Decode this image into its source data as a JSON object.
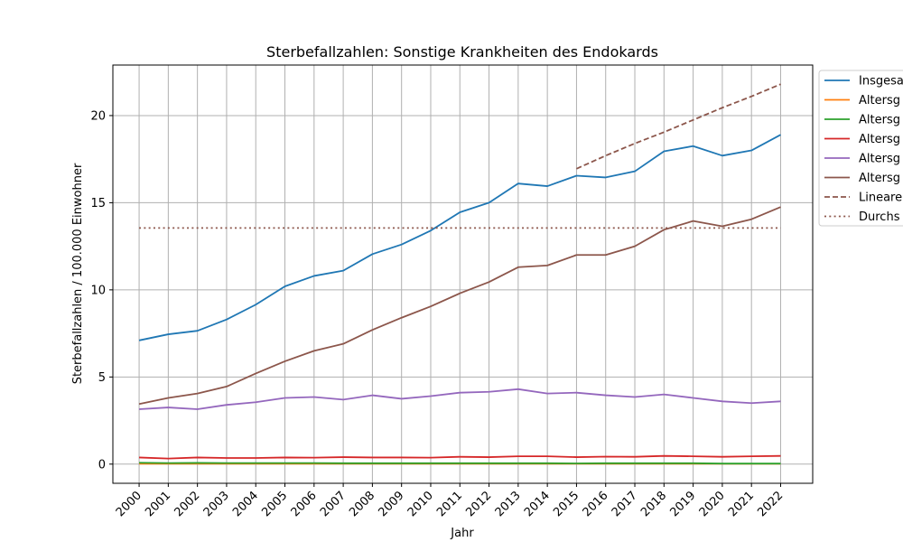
{
  "chart_data": {
    "type": "line",
    "title": "Sterbefallzahlen: Sonstige Krankheiten des Endokards",
    "xlabel": "Jahr",
    "ylabel": "Sterbefallzahlen / 100.000 Einwohner",
    "x": [
      "2000",
      "2001",
      "2002",
      "2003",
      "2004",
      "2005",
      "2006",
      "2007",
      "2008",
      "2009",
      "2010",
      "2011",
      "2012",
      "2013",
      "2014",
      "2015",
      "2016",
      "2017",
      "2018",
      "2019",
      "2020",
      "2021",
      "2022"
    ],
    "xlim": [
      1999.1,
      2023.1
    ],
    "ylim": [
      -1.1,
      22.9
    ],
    "yticks": [
      0,
      5,
      10,
      15,
      20
    ],
    "grid": true,
    "legend_position": "outside-right",
    "series": [
      {
        "name": "Insgesa",
        "color": "#1f77b4",
        "style": "solid",
        "values": [
          7.1,
          7.45,
          7.65,
          8.3,
          9.15,
          10.2,
          10.8,
          11.1,
          12.05,
          12.6,
          13.4,
          14.45,
          15.0,
          16.1,
          15.95,
          16.55,
          16.45,
          16.8,
          17.95,
          18.25,
          17.7,
          18.0,
          18.9
        ]
      },
      {
        "name": "Altersg",
        "color": "#ff7f0e",
        "style": "solid",
        "values": [
          0.02,
          0.02,
          0.02,
          0.02,
          0.02,
          0.02,
          0.02,
          0.02,
          0.02,
          0.02,
          0.02,
          0.02,
          0.02,
          0.02,
          0.02,
          0.02,
          0.02,
          0.02,
          0.02,
          0.02,
          0.02,
          0.02,
          0.02
        ]
      },
      {
        "name": "Altersg",
        "color": "#2ca02c",
        "style": "solid",
        "values": [
          0.08,
          0.06,
          0.07,
          0.06,
          0.06,
          0.06,
          0.06,
          0.05,
          0.05,
          0.05,
          0.05,
          0.05,
          0.05,
          0.05,
          0.05,
          0.04,
          0.05,
          0.05,
          0.05,
          0.05,
          0.03,
          0.03,
          0.03
        ]
      },
      {
        "name": "Altersg",
        "color": "#d62728",
        "style": "solid",
        "values": [
          0.38,
          0.32,
          0.38,
          0.35,
          0.35,
          0.38,
          0.37,
          0.4,
          0.38,
          0.38,
          0.37,
          0.42,
          0.4,
          0.45,
          0.45,
          0.4,
          0.43,
          0.42,
          0.47,
          0.45,
          0.42,
          0.45,
          0.47
        ]
      },
      {
        "name": "Altersg",
        "color": "#9467bd",
        "style": "solid",
        "values": [
          3.15,
          3.25,
          3.15,
          3.4,
          3.55,
          3.8,
          3.85,
          3.7,
          3.95,
          3.75,
          3.9,
          4.1,
          4.15,
          4.3,
          4.05,
          4.1,
          3.95,
          3.85,
          4.0,
          3.8,
          3.6,
          3.5,
          3.6
        ]
      },
      {
        "name": "Altersg",
        "color": "#8c564b",
        "style": "solid",
        "values": [
          3.45,
          3.8,
          4.05,
          4.45,
          5.2,
          5.9,
          6.5,
          6.9,
          7.7,
          8.4,
          9.05,
          9.8,
          10.45,
          11.3,
          11.4,
          12.0,
          12.0,
          12.5,
          13.45,
          13.95,
          13.65,
          14.05,
          14.75
        ]
      },
      {
        "name": "Lineare",
        "color": "#8c564b",
        "style": "dashed",
        "x": [
          "2015",
          "2016",
          "2017",
          "2018",
          "2019",
          "2020",
          "2021",
          "2022"
        ],
        "values": [
          16.95,
          17.7,
          18.4,
          19.05,
          19.75,
          20.45,
          21.1,
          21.8
        ]
      },
      {
        "name": "Durchs",
        "color": "#8c564b",
        "style": "dotted",
        "x": [
          "2000",
          "2022"
        ],
        "values": [
          13.55,
          13.55
        ]
      }
    ]
  }
}
